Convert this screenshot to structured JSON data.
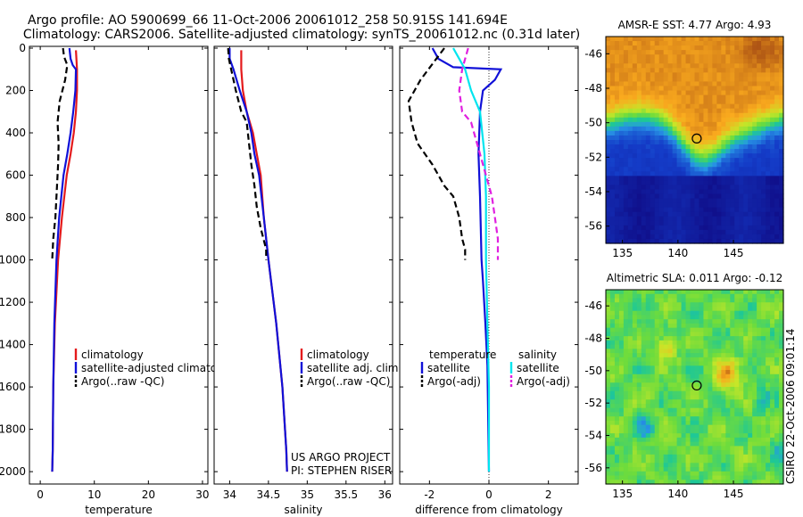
{
  "title": {
    "line1": "Argo profile: AO 5900699_66 11-Oct-2006 20061012_258 50.915S 141.694E",
    "line2": "Climatology: CARS2006. Satellite-adjusted climatology: synTS_20061012.nc (0.31d later)"
  },
  "colors": {
    "climatology": "#e41a1c",
    "satellite": "#1010d8",
    "argo": "#000000",
    "sat_sal": "#00e5ee",
    "argo_sal": "#e020e0"
  },
  "side_text": {
    "vertical": "CSIRO 22-Oct-2006 09:01:14"
  },
  "chart_data": [
    {
      "type": "line",
      "name": "temperature-profile",
      "xlabel": "temperature",
      "ylabel": "",
      "xlim": [
        -2,
        31
      ],
      "ylim": [
        0,
        2050
      ],
      "y_reversed": true,
      "xticks": [
        0,
        10,
        20,
        30
      ],
      "xtick_labels": [
        "0",
        "10",
        "20",
        "30"
      ],
      "yticks": [
        0,
        200,
        400,
        600,
        800,
        1000,
        1200,
        1400,
        1600,
        1800,
        2000
      ],
      "ytick_labels": [
        "0",
        "200",
        "400",
        "600",
        "800",
        "1000",
        "1200",
        "1400",
        "1600",
        "1800",
        "2000"
      ],
      "legend": [
        {
          "label": "climatology",
          "key": "climatology"
        },
        {
          "label": "satellite-adjusted climatology",
          "key": "satellite"
        },
        {
          "label": "Argo(..raw -QC)",
          "key": "argo"
        }
      ],
      "series": [
        {
          "name": "climatology",
          "key": "climatology",
          "style": "solid",
          "x": [
            6.6,
            6.8,
            6.8,
            6.6,
            6.2,
            5.6,
            4.9,
            4.0,
            3.3,
            2.7,
            2.4,
            2.3,
            2.2
          ],
          "y": [
            10,
            100,
            200,
            300,
            400,
            500,
            600,
            800,
            1000,
            1300,
            1600,
            1900,
            2000
          ]
        },
        {
          "name": "satellite-adjusted climatology",
          "key": "satellite",
          "style": "solid",
          "x": [
            5.4,
            5.6,
            6.0,
            6.6,
            6.5,
            6.1,
            5.6,
            5.0,
            4.3,
            3.5,
            3.0,
            2.6,
            2.4,
            2.3,
            2.2
          ],
          "y": [
            0,
            50,
            80,
            100,
            200,
            300,
            400,
            500,
            600,
            800,
            1000,
            1300,
            1600,
            1900,
            2000
          ]
        },
        {
          "name": "Argo(..raw -QC)",
          "key": "argo",
          "style": "dashed",
          "x": [
            4.2,
            4.4,
            5.0,
            4.6,
            3.6,
            3.2,
            3.4,
            3.3,
            3.1,
            2.8,
            2.4,
            2.2
          ],
          "y": [
            0,
            40,
            80,
            150,
            250,
            350,
            450,
            550,
            650,
            800,
            900,
            1000
          ]
        }
      ]
    },
    {
      "type": "line",
      "name": "salinity-profile",
      "xlabel": "salinity",
      "xlim": [
        33.8,
        36.1
      ],
      "ylim": [
        0,
        2050
      ],
      "y_reversed": true,
      "xticks": [
        34,
        34.5,
        35,
        35.5,
        36
      ],
      "xtick_labels": [
        "34",
        "34.5",
        "35",
        "35.5",
        "36"
      ],
      "legend": [
        {
          "label": "climatology",
          "key": "climatology"
        },
        {
          "label": "satellite adj. clim.",
          "key": "satellite"
        },
        {
          "label": "Argo(..raw -QC)",
          "key": "argo"
        }
      ],
      "annotation": [
        "US ARGO PROJECT",
        "PI: STEPHEN RISER"
      ],
      "series": [
        {
          "name": "climatology",
          "key": "climatology",
          "style": "solid",
          "x": [
            34.15,
            34.15,
            34.17,
            34.22,
            34.3,
            34.35,
            34.4,
            34.44,
            34.5,
            34.6,
            34.68,
            34.73,
            34.74
          ],
          "y": [
            10,
            100,
            200,
            300,
            400,
            500,
            600,
            800,
            1000,
            1300,
            1600,
            1900,
            2000
          ]
        },
        {
          "name": "satellite adj. clim.",
          "key": "satellite",
          "style": "solid",
          "x": [
            34.0,
            34.0,
            34.05,
            34.13,
            34.22,
            34.28,
            34.32,
            34.38,
            34.44,
            34.5,
            34.6,
            34.68,
            34.73,
            34.74
          ],
          "y": [
            0,
            50,
            100,
            200,
            300,
            400,
            500,
            600,
            800,
            1000,
            1300,
            1600,
            1900,
            2000
          ]
        },
        {
          "name": "Argo(..raw -QC)",
          "key": "argo",
          "style": "dashed",
          "x": [
            33.98,
            33.99,
            34.02,
            34.05,
            34.08,
            34.15,
            34.22,
            34.25,
            34.28,
            34.32,
            34.35,
            34.4,
            34.47,
            34.47
          ],
          "y": [
            0,
            50,
            100,
            150,
            200,
            300,
            350,
            450,
            550,
            650,
            750,
            850,
            950,
            1000
          ]
        }
      ]
    },
    {
      "type": "line",
      "name": "difference-profile",
      "xlabel": "difference from climatology",
      "xlim": [
        -3,
        3
      ],
      "ylim": [
        0,
        2050
      ],
      "y_reversed": true,
      "xticks": [
        -2,
        0,
        2
      ],
      "xtick_labels": [
        "-2",
        "0",
        "2"
      ],
      "legend": [
        {
          "label": "temperature",
          "key": "none"
        },
        {
          "label": "satellite",
          "key": "satellite"
        },
        {
          "label": "Argo(-adj)",
          "key": "argo"
        },
        {
          "label": "salinity",
          "key": "none"
        },
        {
          "label": "satellite",
          "key": "sat_sal"
        },
        {
          "label": "Argo(-adj)",
          "key": "argo_sal"
        }
      ],
      "series": [
        {
          "name": "temperature satellite",
          "key": "satellite",
          "style": "solid",
          "x": [
            -1.9,
            -1.7,
            -1.2,
            0.4,
            0.2,
            -0.2,
            -0.3,
            -0.35,
            -0.3,
            -0.25,
            -0.2,
            -0.12,
            -0.05,
            -0.02,
            0.0
          ],
          "y": [
            0,
            50,
            90,
            100,
            150,
            200,
            300,
            500,
            700,
            1000,
            1100,
            1300,
            1500,
            1800,
            2000
          ]
        },
        {
          "name": "temperature Argo(-adj)",
          "key": "argo",
          "style": "dashed",
          "x": [
            -1.5,
            -2.3,
            -2.7,
            -2.6,
            -2.4,
            -1.9,
            -1.5,
            -1.2,
            -1.0,
            -0.9,
            -0.8,
            -0.8
          ],
          "y": [
            0,
            150,
            250,
            350,
            450,
            550,
            650,
            700,
            800,
            900,
            950,
            1000
          ]
        },
        {
          "name": "salinity satellite",
          "key": "sat_sal",
          "style": "solid",
          "x": [
            -1.2,
            -1.0,
            -0.8,
            -0.6,
            -0.3,
            -0.15,
            -0.1,
            -0.1,
            -0.05,
            0.0,
            0.0
          ],
          "y": [
            0,
            50,
            100,
            200,
            300,
            500,
            700,
            1000,
            1300,
            1600,
            2000
          ]
        },
        {
          "name": "salinity Argo(-adj)",
          "key": "argo_sal",
          "style": "dashed",
          "x": [
            -0.7,
            -0.9,
            -1.0,
            -0.9,
            -0.6,
            -0.5,
            -0.3,
            0.1,
            0.2,
            0.3,
            0.3
          ],
          "y": [
            0,
            100,
            200,
            300,
            350,
            400,
            500,
            700,
            800,
            900,
            1000
          ]
        }
      ]
    },
    {
      "type": "heatmap",
      "name": "sst-map",
      "title": "AMSR-E SST: 4.77  Argo: 4.93",
      "xlim": [
        133.5,
        149.5
      ],
      "ylim": [
        -57,
        -45
      ],
      "xticks": [
        135,
        140,
        145
      ],
      "xtick_labels": [
        "135",
        "140",
        "145"
      ],
      "yticks": [
        -46,
        -48,
        -50,
        -52,
        -54,
        -56
      ],
      "ytick_labels": [
        "-46",
        "-48",
        "-50",
        "-52",
        "-54",
        "-56"
      ],
      "marker": {
        "x": 141.694,
        "y": -50.915
      }
    },
    {
      "type": "heatmap",
      "name": "sla-map",
      "title": "Altimetric SLA: 0.011  Argo: -0.12",
      "xlim": [
        133.5,
        149.5
      ],
      "ylim": [
        -57,
        -45
      ],
      "xticks": [
        135,
        140,
        145
      ],
      "xtick_labels": [
        "135",
        "140",
        "145"
      ],
      "yticks": [
        -46,
        -48,
        -50,
        -52,
        -54,
        -56
      ],
      "ytick_labels": [
        "-46",
        "-48",
        "-50",
        "-52",
        "-54",
        "-56"
      ],
      "marker": {
        "x": 141.694,
        "y": -50.915
      }
    }
  ]
}
